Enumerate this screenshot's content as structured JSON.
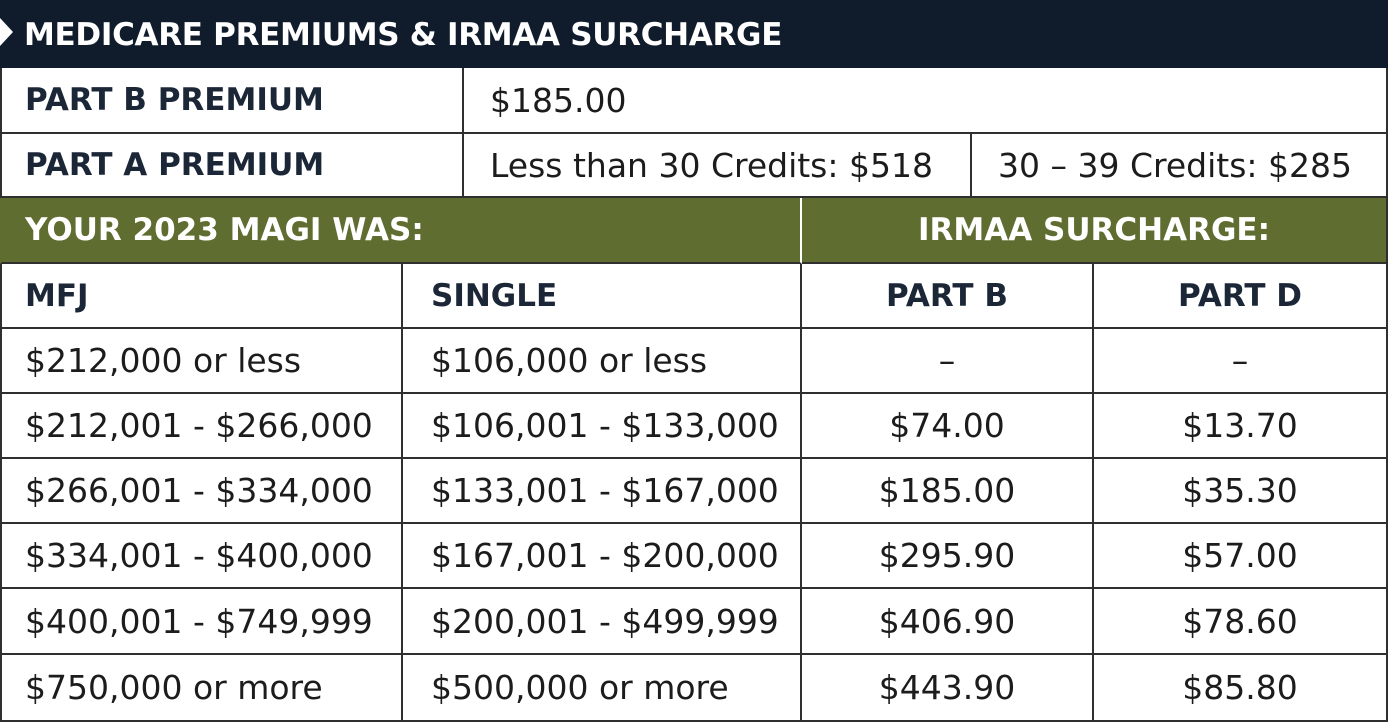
{
  "title": "MEDICARE PREMIUMS & IRMAA SURCHARGE",
  "part_b": {
    "label": "PART B PREMIUM",
    "value": "$185.00"
  },
  "part_a": {
    "label": "PART A PREMIUM",
    "option1": "Less than 30 Credits: $518",
    "option2": "30 – 39 Credits: $285"
  },
  "band": {
    "left": "YOUR 2023 MAGI WAS:",
    "right": "IRMAA SURCHARGE:"
  },
  "columns": [
    "MFJ",
    "SINGLE",
    "PART B",
    "PART D"
  ],
  "rows": [
    [
      "$212,000 or less",
      "$106,000 or less",
      "–",
      "–"
    ],
    [
      "$212,001 - $266,000",
      "$106,001 - $133,000",
      "$74.00",
      "$13.70"
    ],
    [
      "$266,001 - $334,000",
      "$133,001 - $167,000",
      "$185.00",
      "$35.30"
    ],
    [
      "$334,001 - $400,000",
      "$167,001 - $200,000",
      "$295.90",
      "$57.00"
    ],
    [
      "$400,001 - $749,999",
      "$200,001 - $499,999",
      "$406.90",
      "$78.60"
    ],
    [
      "$750,000 or more",
      "$500,000 or more",
      "$443.90",
      "$85.80"
    ]
  ]
}
